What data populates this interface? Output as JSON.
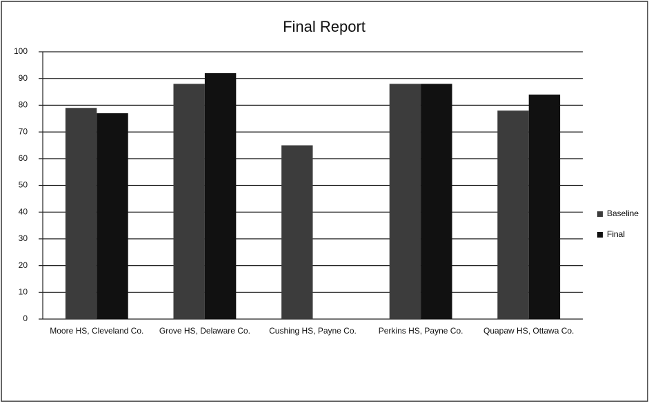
{
  "chart_data": {
    "type": "bar",
    "title": "Final Report",
    "categories": [
      "Moore HS, Cleveland Co.",
      "Grove HS, Delaware Co.",
      "Cushing HS, Payne Co.",
      "Perkins HS, Payne Co.",
      "Quapaw HS, Ottawa Co."
    ],
    "series": [
      {
        "name": "Baseline",
        "color": "#3c3c3c",
        "values": [
          79,
          88,
          65,
          88,
          78
        ]
      },
      {
        "name": "Final",
        "color": "#111111",
        "values": [
          77,
          92,
          null,
          88,
          84
        ]
      }
    ],
    "ylim": [
      0,
      100
    ],
    "yticks": [
      0,
      10,
      20,
      30,
      40,
      50,
      60,
      70,
      80,
      90,
      100
    ],
    "grid": true,
    "legend": "right"
  }
}
